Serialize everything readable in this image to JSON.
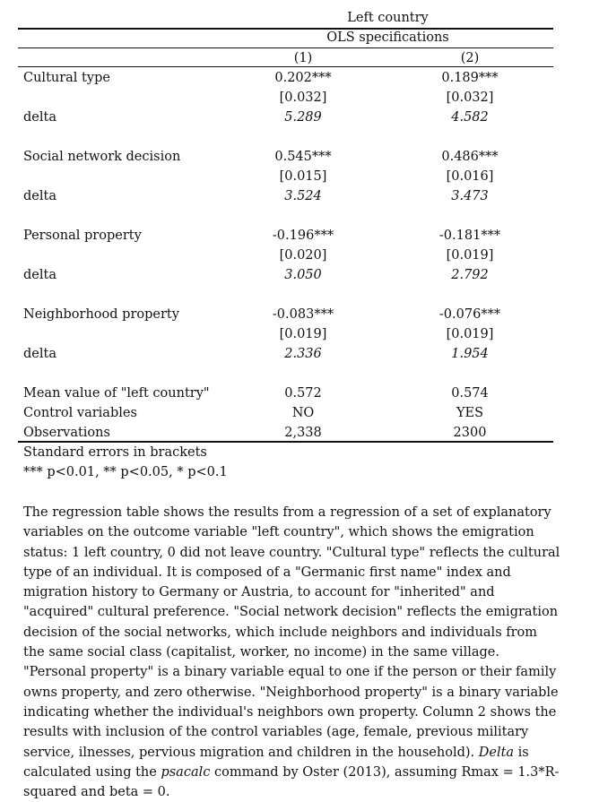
{
  "header": {
    "dependent_var": "Left country",
    "spec_title": "OLS specifications",
    "col1": "(1)",
    "col2": "(2)"
  },
  "rows": [
    {
      "label": "Cultural type",
      "c1": "0.202***",
      "c2": "0.189***",
      "se1": "[0.032]",
      "se2": "[0.032]",
      "delta_label": "delta",
      "d1": "5.289",
      "d2": "4.582"
    },
    {
      "label": "Social network decision",
      "c1": "0.545***",
      "c2": "0.486***",
      "se1": "[0.015]",
      "se2": "[0.016]",
      "delta_label": "delta",
      "d1": "3.524",
      "d2": "3.473"
    },
    {
      "label": "Personal property",
      "c1": "-0.196***",
      "c2": "-0.181***",
      "se1": "[0.020]",
      "se2": "[0.019]",
      "delta_label": "delta",
      "d1": "3.050",
      "d2": "2.792"
    },
    {
      "label": "Neighborhood property",
      "c1": "-0.083***",
      "c2": "-0.076***",
      "se1": "[0.019]",
      "se2": "[0.019]",
      "delta_label": "delta",
      "d1": "2.336",
      "d2": "1.954"
    }
  ],
  "footer_rows": [
    {
      "label": "Mean value of \"left country\"",
      "c1": "0.572",
      "c2": "0.574"
    },
    {
      "label": "Control variables",
      "c1": "NO",
      "c2": "YES"
    },
    {
      "label": "Observations",
      "c1": "2,338",
      "c2": "2300"
    }
  ],
  "notes": {
    "se_note": "Standard errors in brackets",
    "sig_note": "*** p<0.01, ** p<0.05, * p<0.1"
  },
  "description": {
    "part1": "The regression table shows the results from a regression of a set of explanatory variables on the outcome variable \"left country\", which shows the emigration status: 1 left country, 0 did not leave country. \"Cultural type\" reflects the cultural type of an individual. It is composed of a \"Germanic first name\" index and migration history to Germany or Austria, to account for \"inherited\" and \"acquired\" cultural preference. \"Social network decision\" reflects the emigration decision of the social networks, which include neighbors and individuals from the same social class (capitalist, worker, no income) in the same village. \"Personal property\" is a binary variable equal to one if the person or their family owns property, and zero otherwise. \"Neighborhood property\" is a binary variable indicating whether the individual's neighbors own property. Column 2 shows the results with inclusion of the control variables (age, female, previous military service, ilnesses, pervious migration and children in the household). ",
    "delta_word": "Delta",
    "part2": " is calculated using the ",
    "cmd_word": "psacalc",
    "part3": " command by Oster (2013), assuming Rmax = 1.3*R-squared and beta = 0."
  }
}
